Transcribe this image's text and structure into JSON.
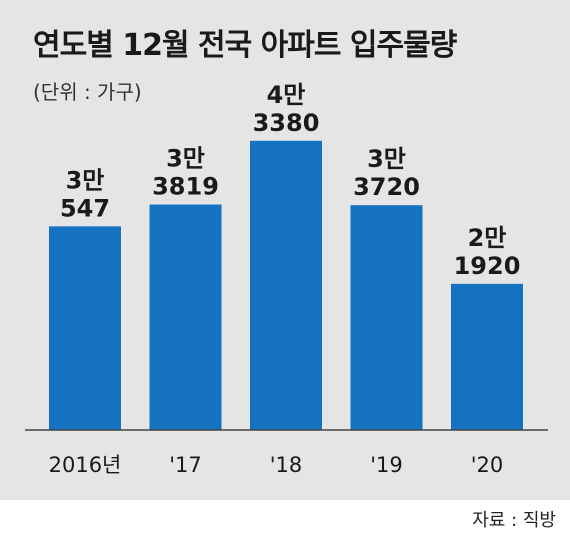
{
  "header": {
    "title": "연도별 12월 전국 아파트 입주물량",
    "unit": "(단위 : 가구)"
  },
  "source": "자료 : 직방",
  "colors": {
    "bar": "#1472c0",
    "background": "#e5e5e6",
    "axis": "#444444"
  },
  "chart_data": {
    "type": "bar",
    "title": "연도별 12월 전국 아파트 입주물량",
    "categories": [
      "2016년",
      "'17",
      "'18",
      "'19",
      "'20"
    ],
    "values": [
      30547,
      33819,
      43380,
      33720,
      21920
    ],
    "data_labels": [
      [
        "3만",
        "547"
      ],
      [
        "3만",
        "3819"
      ],
      [
        "4만",
        "3380"
      ],
      [
        "3만",
        "3720"
      ],
      [
        "2만",
        "1920"
      ]
    ],
    "ylim": [
      0,
      51000
    ],
    "grid": false,
    "legend": "none"
  }
}
